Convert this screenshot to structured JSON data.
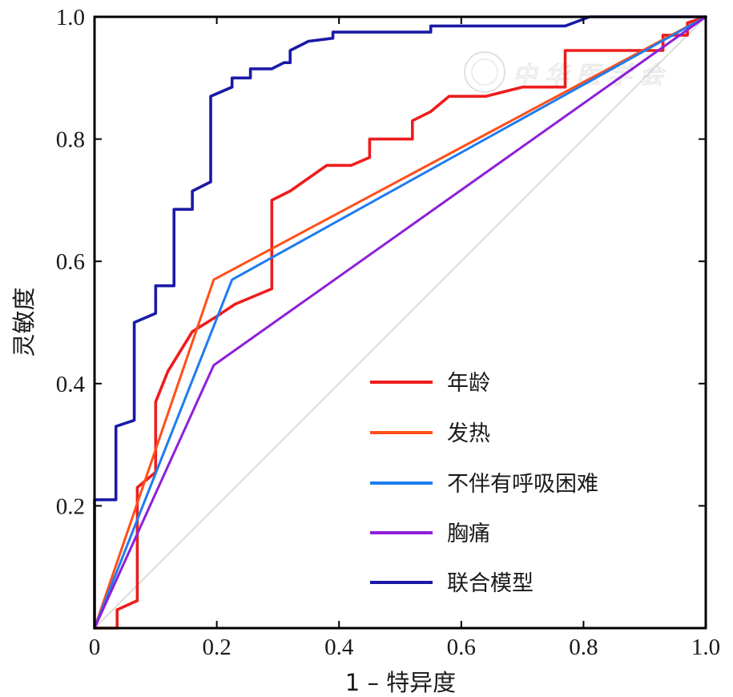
{
  "chart_data": {
    "type": "line",
    "title": "",
    "xlabel": "1 – 特异度",
    "ylabel": "灵敏度",
    "xlim": [
      0,
      1
    ],
    "ylim": [
      0,
      1
    ],
    "x_ticks": [
      "0",
      "0.2",
      "0.4",
      "0.6",
      "0.8",
      "1.0"
    ],
    "y_ticks": [
      "0.2",
      "0.4",
      "0.6",
      "0.8",
      "1.0"
    ],
    "grid": false,
    "legend_position": "lower-right",
    "reference_line": {
      "x": [
        0,
        1
      ],
      "y": [
        0,
        1
      ],
      "color": "#d0d0d0"
    },
    "series": [
      {
        "name": "年龄",
        "color": "#ee1c1c",
        "x": [
          0,
          0.037,
          0.037,
          0.07,
          0.07,
          0.07,
          0.1,
          0.1,
          0.12,
          0.16,
          0.2,
          0.23,
          0.29,
          0.29,
          0.32,
          0.38,
          0.42,
          0.45,
          0.45,
          0.52,
          0.52,
          0.55,
          0.58,
          0.64,
          0.7,
          0.77,
          0.77,
          0.93,
          0.93,
          0.97,
          0.97,
          1.0
        ],
        "y": [
          0,
          0,
          0.03,
          0.045,
          0.23,
          0.23,
          0.255,
          0.37,
          0.42,
          0.485,
          0.51,
          0.53,
          0.555,
          0.7,
          0.715,
          0.757,
          0.757,
          0.77,
          0.8,
          0.8,
          0.83,
          0.845,
          0.87,
          0.87,
          0.885,
          0.885,
          0.945,
          0.945,
          0.97,
          0.97,
          0.99,
          1.0
        ]
      },
      {
        "name": "发热",
        "color": "#ff4f1a",
        "x": [
          0,
          0.195,
          1.0
        ],
        "y": [
          0,
          0.57,
          1.0
        ]
      },
      {
        "name": "不伴有呼吸困难",
        "color": "#1e7cf0",
        "x": [
          0,
          0.225,
          1.0
        ],
        "y": [
          0,
          0.57,
          1.0
        ]
      },
      {
        "name": "胸痛",
        "color": "#8e1fd8",
        "x": [
          0,
          0.195,
          1.0
        ],
        "y": [
          0,
          0.43,
          1.0
        ]
      },
      {
        "name": "联合模型",
        "color": "#1a1aa6",
        "x": [
          0,
          0,
          0.035,
          0.035,
          0.065,
          0.065,
          0.1,
          0.1,
          0.13,
          0.13,
          0.16,
          0.16,
          0.19,
          0.19,
          0.225,
          0.225,
          0.255,
          0.255,
          0.29,
          0.31,
          0.32,
          0.32,
          0.35,
          0.35,
          0.39,
          0.39,
          0.55,
          0.55,
          0.77,
          0.81,
          1.0
        ],
        "y": [
          0,
          0.21,
          0.21,
          0.33,
          0.34,
          0.5,
          0.515,
          0.56,
          0.56,
          0.685,
          0.685,
          0.715,
          0.73,
          0.87,
          0.885,
          0.9,
          0.9,
          0.915,
          0.915,
          0.925,
          0.925,
          0.945,
          0.96,
          0.96,
          0.965,
          0.975,
          0.975,
          0.985,
          0.985,
          1.0,
          1.0
        ]
      }
    ]
  },
  "watermark": {
    "text": "中 华 医 学 会"
  }
}
